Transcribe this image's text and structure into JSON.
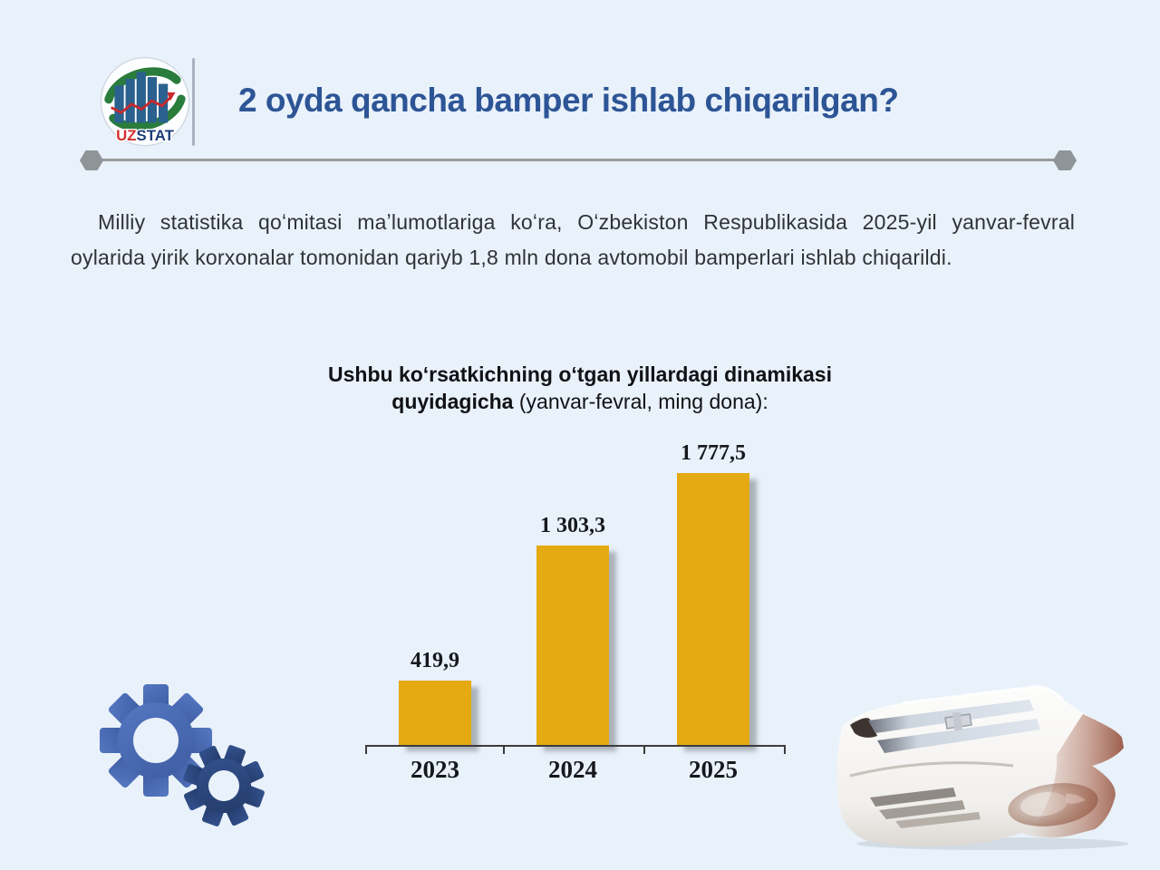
{
  "header": {
    "title": "2 oyda qancha bamper ishlab chiqarilgan?",
    "logo": {
      "uz": "UZ",
      "stat": "STAT"
    }
  },
  "intro": {
    "text": "Milliy statistika qoʻmitasi maʼlumotlariga koʻra, Oʻzbekiston Respublikasida 2025-yil yanvar-fevral oylarida yirik korxonalar tomonidan qariyb 1,8 mln dona avtomobil bamperlari ishlab chiqarildi."
  },
  "chart_heading": {
    "bold": "Ushbu koʻrsatkichning oʻtgan yillardagi dinamikasi quyidagicha",
    "normal": " (yanvar-fevral, ming dona):"
  },
  "chart_data": {
    "type": "bar",
    "title": "Ushbu koʻrsatkichning oʻtgan yillardagi dinamikasi quyidagicha (yanvar-fevral, ming dona)",
    "categories": [
      "2023",
      "2024",
      "2025"
    ],
    "values": [
      419.9,
      1303.3,
      1777.5
    ],
    "value_labels": [
      "419,9",
      "1 303,3",
      "1 777,5"
    ],
    "unit": "ming dona",
    "xlabel": "",
    "ylabel": "",
    "ylim": [
      0,
      1900
    ],
    "grid": false,
    "legend": false,
    "bar_color": "#e5a912"
  },
  "decor": {
    "gears_icon": "gears-icon",
    "bumper_image": "car-bumper-photo"
  },
  "colors": {
    "background": "#e9f1fa",
    "title_blue": "#2d5596",
    "bar_gold": "#e5a912",
    "divider_gray": "#9b9b9b",
    "gear_blue_large": "#4a6cb4",
    "gear_blue_small": "#2e4b82",
    "logo_green": "#2a7c3c",
    "logo_bar_blue": "#2a618e",
    "logo_red": "#d42f2f",
    "logo_navy": "#1d3e78"
  }
}
